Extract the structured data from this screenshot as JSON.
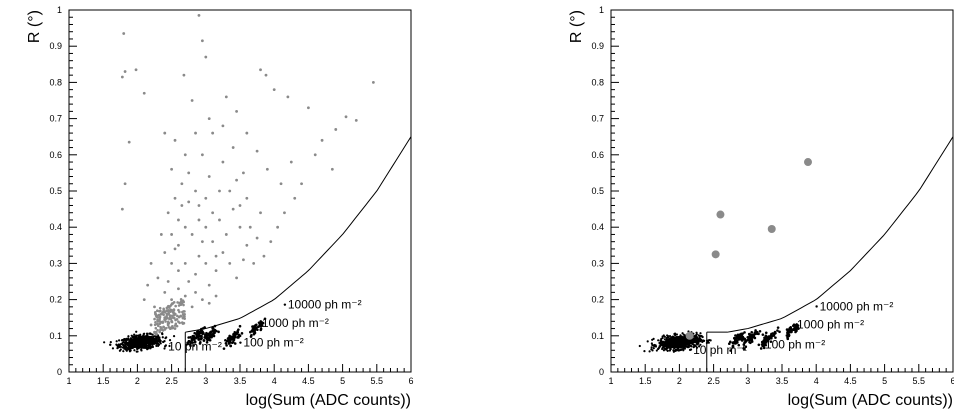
{
  "chart_data": [
    {
      "type": "scatter",
      "xlabel": "log(Sum (ADC counts))",
      "ylabel": "R (°)",
      "xlim": [
        1,
        6
      ],
      "ylim": [
        0,
        1
      ],
      "xticks": [
        "1",
        "1.5",
        "2",
        "2.5",
        "3",
        "3.5",
        "4",
        "4.5",
        "5",
        "5.5",
        "6"
      ],
      "yticks": [
        "0",
        "0.1",
        "0.2",
        "0.3",
        "0.4",
        "0.5",
        "0.6",
        "0.7",
        "0.8",
        "0.9",
        "1"
      ],
      "colors": {
        "background_events": "#8a8a8a",
        "simulated_events": "#000000"
      },
      "cut_curve": {
        "x": [
          2.7,
          3.0,
          3.5,
          4.0,
          4.5,
          5.0,
          5.5,
          6.0
        ],
        "y": [
          0.11,
          0.12,
          0.148,
          0.2,
          0.28,
          0.38,
          0.5,
          0.65
        ]
      },
      "cut_box": {
        "x_min": 2.7,
        "x_max": 6,
        "y_min": 0,
        "y_max": 0.11
      },
      "annotations": [
        {
          "text": "10 ph m⁻²",
          "x": 2.45,
          "y": 0.06
        },
        {
          "text": "100 ph m⁻²",
          "x": 3.55,
          "y": 0.07
        },
        {
          "text": "1000 ph m⁻²",
          "x": 3.82,
          "y": 0.125
        },
        {
          "text": "10000 ph m⁻²",
          "x": 4.2,
          "y": 0.175
        }
      ],
      "simulated_clusters": [
        {
          "x": 2.85,
          "y": 0.095
        },
        {
          "x": 3.05,
          "y": 0.098
        },
        {
          "x": 3.4,
          "y": 0.095
        },
        {
          "x": 3.7,
          "y": 0.115
        },
        {
          "x": 3.8,
          "y": 0.13
        }
      ],
      "background_points": [
        [
          1.8,
          0.935
        ],
        [
          1.82,
          0.83
        ],
        [
          1.98,
          0.835
        ],
        [
          1.78,
          0.815
        ],
        [
          2.1,
          0.77
        ],
        [
          1.88,
          0.635
        ],
        [
          1.82,
          0.52
        ],
        [
          1.78,
          0.45
        ],
        [
          2.4,
          0.66
        ],
        [
          2.68,
          0.82
        ],
        [
          2.9,
          0.985
        ],
        [
          2.95,
          0.915
        ],
        [
          3.0,
          0.87
        ],
        [
          2.8,
          0.75
        ],
        [
          3.3,
          0.76
        ],
        [
          3.45,
          0.72
        ],
        [
          3.8,
          0.835
        ],
        [
          3.88,
          0.82
        ],
        [
          4.0,
          0.78
        ],
        [
          4.2,
          0.76
        ],
        [
          4.5,
          0.73
        ],
        [
          5.45,
          0.8
        ],
        [
          5.2,
          0.695
        ],
        [
          5.05,
          0.705
        ],
        [
          4.9,
          0.67
        ],
        [
          4.7,
          0.64
        ],
        [
          4.85,
          0.56
        ],
        [
          4.6,
          0.6
        ],
        [
          4.4,
          0.52
        ],
        [
          4.3,
          0.48
        ],
        [
          4.15,
          0.44
        ],
        [
          3.9,
          0.56
        ],
        [
          3.75,
          0.61
        ],
        [
          3.6,
          0.66
        ],
        [
          3.55,
          0.55
        ],
        [
          3.4,
          0.62
        ],
        [
          3.25,
          0.58
        ],
        [
          3.1,
          0.66
        ],
        [
          3.2,
          0.5
        ],
        [
          3.05,
          0.54
        ],
        [
          2.95,
          0.6
        ],
        [
          2.85,
          0.5
        ],
        [
          2.75,
          0.55
        ],
        [
          2.65,
          0.52
        ],
        [
          2.55,
          0.48
        ],
        [
          2.5,
          0.56
        ],
        [
          2.45,
          0.44
        ],
        [
          2.6,
          0.42
        ],
        [
          2.7,
          0.4
        ],
        [
          2.8,
          0.38
        ],
        [
          2.9,
          0.42
        ],
        [
          3.0,
          0.4
        ],
        [
          3.1,
          0.36
        ],
        [
          3.2,
          0.42
        ],
        [
          3.3,
          0.38
        ],
        [
          3.4,
          0.45
        ],
        [
          3.5,
          0.4
        ],
        [
          3.6,
          0.35
        ],
        [
          3.7,
          0.3
        ],
        [
          3.85,
          0.32
        ],
        [
          3.95,
          0.36
        ],
        [
          4.05,
          0.4
        ],
        [
          3.6,
          0.48
        ],
        [
          3.8,
          0.44
        ],
        [
          2.35,
          0.38
        ],
        [
          2.4,
          0.33
        ],
        [
          2.5,
          0.3
        ],
        [
          2.55,
          0.34
        ],
        [
          2.6,
          0.28
        ],
        [
          2.7,
          0.3
        ],
        [
          2.75,
          0.25
        ],
        [
          2.85,
          0.27
        ],
        [
          2.9,
          0.32
        ],
        [
          3.0,
          0.3
        ],
        [
          3.05,
          0.24
        ],
        [
          3.15,
          0.28
        ],
        [
          3.25,
          0.33
        ],
        [
          3.35,
          0.3
        ],
        [
          3.45,
          0.26
        ],
        [
          3.55,
          0.31
        ],
        [
          2.3,
          0.26
        ],
        [
          2.4,
          0.22
        ],
        [
          2.45,
          0.25
        ],
        [
          2.5,
          0.2
        ],
        [
          2.6,
          0.23
        ],
        [
          2.65,
          0.19
        ],
        [
          2.7,
          0.21
        ],
        [
          2.8,
          0.18
        ],
        [
          2.85,
          0.22
        ],
        [
          2.95,
          0.2
        ],
        [
          3.05,
          0.19
        ],
        [
          3.15,
          0.21
        ],
        [
          2.25,
          0.18
        ],
        [
          2.35,
          0.16
        ],
        [
          2.4,
          0.15
        ],
        [
          2.45,
          0.17
        ],
        [
          2.5,
          0.14
        ],
        [
          2.55,
          0.16
        ],
        [
          2.3,
          0.14
        ],
        [
          2.2,
          0.13
        ],
        [
          2.35,
          0.12
        ],
        [
          2.45,
          0.13
        ],
        [
          2.55,
          0.12
        ],
        [
          2.25,
          0.11
        ],
        [
          2.9,
          0.46
        ],
        [
          3.0,
          0.48
        ],
        [
          3.1,
          0.44
        ],
        [
          2.65,
          0.46
        ],
        [
          2.75,
          0.47
        ],
        [
          3.35,
          0.5
        ],
        [
          3.45,
          0.53
        ],
        [
          2.55,
          0.64
        ],
        [
          2.85,
          0.66
        ],
        [
          3.05,
          0.7
        ],
        [
          3.25,
          0.68
        ],
        [
          2.7,
          0.6
        ],
        [
          3.65,
          0.4
        ],
        [
          3.75,
          0.37
        ],
        [
          4.1,
          0.52
        ],
        [
          4.25,
          0.58
        ],
        [
          2.2,
          0.3
        ],
        [
          2.15,
          0.24
        ],
        [
          2.1,
          0.2
        ],
        [
          2.95,
          0.36
        ],
        [
          3.15,
          0.32
        ],
        [
          2.5,
          0.38
        ],
        [
          2.6,
          0.35
        ],
        [
          3.5,
          0.46
        ]
      ],
      "simulated_dense_region": {
        "x_center": 2.05,
        "y_center": 0.082,
        "x_spread": 0.28,
        "y_spread": 0.017
      }
    },
    {
      "type": "scatter",
      "xlabel": "log(Sum (ADC counts))",
      "ylabel": "R (°)",
      "xlim": [
        1,
        6
      ],
      "ylim": [
        0,
        1
      ],
      "xticks": [
        "1",
        "1.5",
        "2",
        "2.5",
        "3",
        "3.5",
        "4",
        "4.5",
        "5",
        "5.5",
        "6"
      ],
      "yticks": [
        "0",
        "0.1",
        "0.2",
        "0.3",
        "0.4",
        "0.5",
        "0.6",
        "0.7",
        "0.8",
        "0.9",
        "1"
      ],
      "colors": {
        "background_events": "#8a8a8a",
        "simulated_events": "#000000"
      },
      "cut_curve": {
        "x": [
          2.4,
          2.7,
          3.0,
          3.5,
          4.0,
          4.5,
          5.0,
          5.5,
          6.0
        ],
        "y": [
          0.11,
          0.11,
          0.12,
          0.148,
          0.2,
          0.28,
          0.38,
          0.5,
          0.65
        ]
      },
      "cut_box": {
        "x_min": 2.4,
        "x_max": 6,
        "y_min": 0,
        "y_max": 0.11
      },
      "annotations": [
        {
          "text": "10 ph m⁻²",
          "x": 2.2,
          "y": 0.05
        },
        {
          "text": "100 ph m⁻²",
          "x": 3.25,
          "y": 0.065
        },
        {
          "text": "1000 ph m⁻²",
          "x": 3.72,
          "y": 0.12
        },
        {
          "text": "10000 ph m⁻²",
          "x": 4.05,
          "y": 0.17
        }
      ],
      "simulated_clusters": [
        {
          "x": 2.85,
          "y": 0.092
        },
        {
          "x": 3.05,
          "y": 0.095
        },
        {
          "x": 3.3,
          "y": 0.093
        },
        {
          "x": 3.6,
          "y": 0.11
        },
        {
          "x": 3.7,
          "y": 0.12
        }
      ],
      "background_points_large": [
        [
          3.88,
          0.58
        ],
        [
          2.6,
          0.435
        ],
        [
          3.35,
          0.395
        ],
        [
          2.53,
          0.325
        ],
        [
          2.15,
          0.1
        ]
      ],
      "simulated_dense_region": {
        "x_center": 2.0,
        "y_center": 0.082,
        "x_spread": 0.28,
        "y_spread": 0.017
      }
    }
  ]
}
